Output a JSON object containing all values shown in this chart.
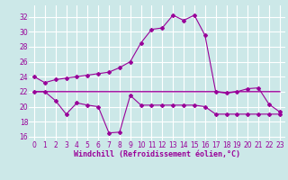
{
  "background_color": "#cce8e8",
  "grid_color": "#ffffff",
  "line_color": "#990099",
  "xlabel": "Windchill (Refroidissement éolien,°C)",
  "xlabel_fontsize": 6.0,
  "tick_fontsize": 5.5,
  "ylim": [
    15.5,
    33.5
  ],
  "xlim": [
    -0.5,
    23.5
  ],
  "yticks": [
    16,
    18,
    20,
    22,
    24,
    26,
    28,
    30,
    32
  ],
  "xticks": [
    0,
    1,
    2,
    3,
    4,
    5,
    6,
    7,
    8,
    9,
    10,
    11,
    12,
    13,
    14,
    15,
    16,
    17,
    18,
    19,
    20,
    21,
    22,
    23
  ],
  "series1_x": [
    0,
    1,
    2,
    3,
    4,
    5,
    6,
    7,
    8,
    9,
    10,
    11,
    12,
    13,
    14,
    15,
    16,
    17,
    18,
    19,
    20,
    21,
    22,
    23
  ],
  "series1_y": [
    24.0,
    23.2,
    23.6,
    23.8,
    24.0,
    24.2,
    24.4,
    24.6,
    25.2,
    26.0,
    28.5,
    30.3,
    30.5,
    32.2,
    31.5,
    32.2,
    29.5,
    22.0,
    21.9,
    22.0,
    22.4,
    22.5,
    20.3,
    19.3
  ],
  "series2_x": [
    0,
    1,
    2,
    3,
    4,
    5,
    6,
    7,
    8,
    9,
    10,
    11,
    12,
    13,
    14,
    15,
    16,
    17,
    18,
    19,
    20,
    21,
    22,
    23
  ],
  "series2_y": [
    22.0,
    22.0,
    20.8,
    19.0,
    20.5,
    20.2,
    20.0,
    16.5,
    16.6,
    21.5,
    20.2,
    20.2,
    20.2,
    20.2,
    20.2,
    20.2,
    20.0,
    19.0,
    19.0,
    19.0,
    19.0,
    19.0,
    19.0,
    19.0
  ],
  "series3_x": [
    0,
    1,
    2,
    3,
    4,
    5,
    6,
    7,
    8,
    9,
    10,
    11,
    12,
    13,
    14,
    15,
    16,
    17,
    18,
    19,
    20,
    21,
    22,
    23
  ],
  "series3_y": [
    22.0,
    22.0,
    22.0,
    22.0,
    22.0,
    22.0,
    22.0,
    22.0,
    22.0,
    22.0,
    22.0,
    22.0,
    22.0,
    22.0,
    22.0,
    22.0,
    22.0,
    22.0,
    21.8,
    22.0,
    22.0,
    22.0,
    22.0,
    22.0
  ]
}
